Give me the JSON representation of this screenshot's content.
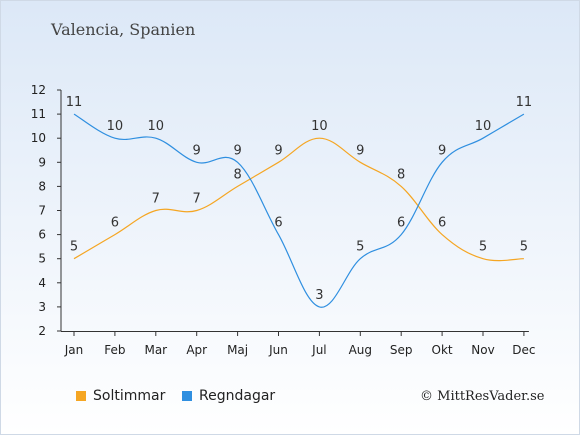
{
  "header": {
    "title": "Valencia, Spanien"
  },
  "credit": "© MittResVader.se",
  "chart_data": {
    "type": "line",
    "title": "Valencia, Spanien",
    "xlabel": "",
    "ylabel": "",
    "categories": [
      "Jan",
      "Feb",
      "Mar",
      "Apr",
      "Maj",
      "Jun",
      "Jul",
      "Aug",
      "Sep",
      "Okt",
      "Nov",
      "Dec"
    ],
    "yticks": [
      2,
      3,
      4,
      5,
      6,
      7,
      8,
      9,
      10,
      11,
      12
    ],
    "ylim": [
      2,
      12
    ],
    "grid": false,
    "legend_position": "bottom-left",
    "series": [
      {
        "name": "Soltimmar",
        "color": "#f5a623",
        "values": [
          5,
          6,
          7,
          7,
          8,
          9,
          10,
          9,
          8,
          6,
          5,
          5
        ]
      },
      {
        "name": "Regndagar",
        "color": "#2f8fe0",
        "values": [
          11,
          10,
          10,
          9,
          9,
          6,
          3,
          5,
          6,
          9,
          10,
          11
        ]
      }
    ]
  }
}
